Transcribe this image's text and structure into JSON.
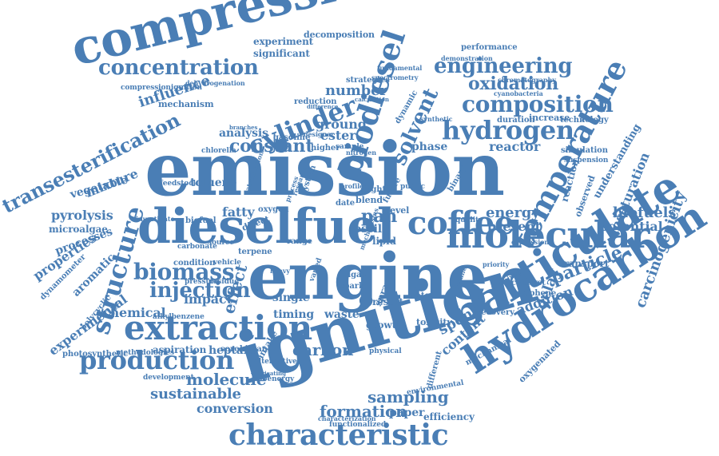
{
  "colors": {
    "word": "#4a7eb5",
    "background": "#ffffff"
  },
  "words": [
    "emission",
    "compression",
    "engine",
    "ignition",
    "dieselfuel",
    "extraction",
    "particulate",
    "hydrocarbon",
    "molecular",
    "temperature",
    "biodiesel",
    "characteristic",
    "production",
    "concentration",
    "composition",
    "hydrogen",
    "structure",
    "cylinder",
    "transesterification",
    "engineering",
    "coffee",
    "biomass",
    "injection",
    "solvent",
    "carcinogenicity",
    "formation",
    "sustainable",
    "molecule",
    "oxidation",
    "conversion",
    "sampling",
    "particle",
    "unsaturation",
    "constant",
    "pyrolysis",
    "chemical",
    "carbon",
    "biofuels",
    "experimental",
    "properties",
    "delay",
    "timing",
    "waste",
    "heptane",
    "aspiration",
    "effect",
    "influence",
    "number",
    "ground",
    "ester",
    "phase",
    "reactor",
    "energy",
    "present",
    "potential",
    "addition",
    "fatty",
    "pah",
    "analysis",
    "mixture",
    "vegetable",
    "toluene",
    "aromatic",
    "processes",
    "microalgae",
    "impact",
    "spent",
    "content",
    "fossil",
    "lipid",
    "single",
    "growth",
    "result",
    "spray",
    "paper",
    "efficiency",
    "functionalized",
    "toxicity",
    "recovery",
    "catalyst",
    "graphene",
    "transport",
    "reaction",
    "understanding",
    "observed",
    "level",
    "experiment",
    "significant",
    "decomposition",
    "performance",
    "increase",
    "technology",
    "duration",
    "simulation",
    "suspension",
    "strategies",
    "mechanism",
    "higher",
    "sample",
    "range",
    "direct",
    "terpene",
    "condition",
    "vehicle",
    "residue",
    "source",
    "pressure",
    "intake",
    "alternative",
    "mechanical",
    "oxygenated",
    "environmental",
    "different",
    "dynamometer",
    "photosynthetic",
    "polycyclic",
    "alkylbenzene",
    "bioenergy",
    "development",
    "methodologies",
    "sorokiniana",
    "reduction",
    "gasoline",
    "oxygen",
    "carbonate",
    "biofuel",
    "investigate",
    "feedstock",
    "chlorella",
    "dynamic",
    "light",
    "date",
    "system",
    "blend",
    "public",
    "binary",
    "quality",
    "future",
    "compressionignition",
    "dehydrogenation",
    "chromatography",
    "cyanobacteria",
    "spectrometry",
    "designer",
    "fundamental",
    "demonstration",
    "priority",
    "water",
    "heavy",
    "spark",
    "algae",
    "varied",
    "physical",
    "characterization",
    "lubricating",
    "expression",
    "nitrogen",
    "branches",
    "difference",
    "calculation",
    "premixed",
    "cetane",
    "synthetic",
    "mechanisms",
    "atomization",
    "profile",
    "process",
    "research"
  ]
}
